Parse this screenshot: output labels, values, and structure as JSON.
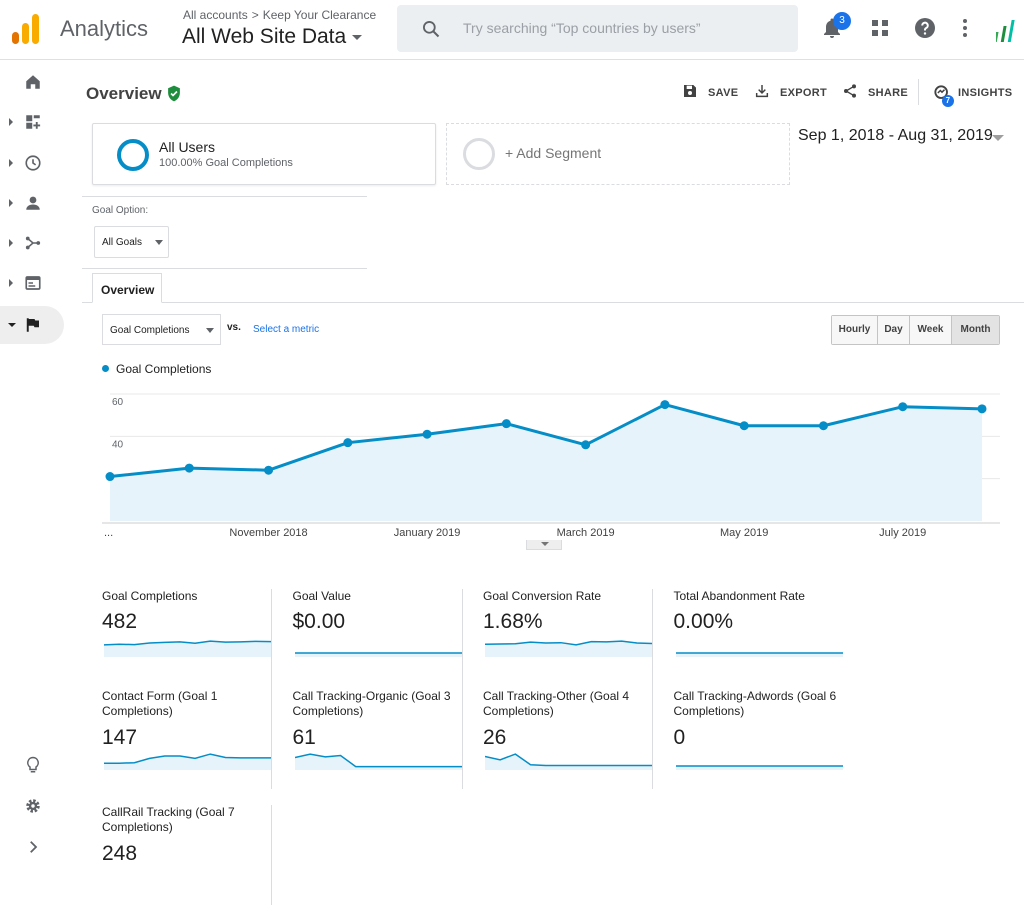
{
  "app": {
    "brand": "Analytics",
    "breadcrumb": [
      "All accounts",
      "Keep Your Clearance"
    ],
    "breadcrumb_sep": ">",
    "view": "All Web Site Data",
    "search_placeholder": "Try searching “Top countries by users”",
    "notification_count": "3"
  },
  "header": {
    "title": "Overview",
    "actions": {
      "save": "SAVE",
      "export": "EXPORT",
      "share": "SHARE",
      "insights": "INSIGHTS"
    },
    "insights_count": "7"
  },
  "segments": {
    "active": {
      "name": "All Users",
      "sub": "100.00% Goal Completions"
    },
    "add": "+ Add Segment"
  },
  "date_range": "Sep 1, 2018 - Aug 31, 2019",
  "goal_option": {
    "label": "Goal Option:",
    "value": "All Goals"
  },
  "tab": "Overview",
  "metric": {
    "primary": "Goal Completions",
    "vs": "vs.",
    "select": "Select a metric"
  },
  "granularity": [
    "Hourly",
    "Day",
    "Week",
    "Month"
  ],
  "granularity_selected": "Month",
  "colors": {
    "series": "#058dc7",
    "fill": "#e6f3fa"
  },
  "chart_data": {
    "type": "area",
    "series": [
      {
        "name": "Goal Completions",
        "values": [
          21,
          25,
          24,
          37,
          41,
          46,
          36,
          55,
          45,
          45,
          54,
          53
        ]
      }
    ],
    "x": [
      "Sep 2018",
      "Oct 2018",
      "Nov 2018",
      "Dec 2018",
      "Jan 2019",
      "Feb 2019",
      "Mar 2019",
      "Apr 2019",
      "May 2019",
      "Jun 2019",
      "Jul 2019",
      "Aug 2019"
    ],
    "ylim": [
      0,
      60
    ],
    "yticks": [
      20,
      40,
      60
    ],
    "xtick_labels": [
      {
        "label": "...",
        "index": 0
      },
      {
        "label": "November 2018",
        "index": 2
      },
      {
        "label": "January 2019",
        "index": 4
      },
      {
        "label": "March 2019",
        "index": 6
      },
      {
        "label": "May 2019",
        "index": 8
      },
      {
        "label": "July 2019",
        "index": 10
      }
    ],
    "grid": true
  },
  "scorecards": [
    {
      "label": "Goal Completions",
      "value": "482",
      "spark": [
        38,
        40,
        39,
        45,
        47,
        49,
        44,
        52,
        48,
        49,
        51,
        50
      ]
    },
    {
      "label": "Goal Value",
      "value": "$0.00",
      "spark": [
        0,
        0,
        0,
        0,
        0,
        0,
        0,
        0,
        0,
        0,
        0,
        0
      ]
    },
    {
      "label": "Goal Conversion Rate",
      "value": "1.68%",
      "spark": [
        40,
        41,
        42,
        48,
        45,
        46,
        38,
        50,
        49,
        52,
        45,
        43
      ]
    },
    {
      "label": "Total Abandonment Rate",
      "value": "0.00%",
      "spark": [
        0,
        0,
        0,
        0,
        0,
        0,
        0,
        0,
        0,
        0,
        0,
        0
      ]
    },
    {
      "label": "Contact Form (Goal 1 Completions)",
      "value": "147",
      "spark": [
        10,
        10,
        11,
        20,
        25,
        25,
        20,
        29,
        22,
        21,
        21,
        21
      ]
    },
    {
      "label": "Call Tracking-Organic (Goal 3 Completions)",
      "value": "61",
      "spark": [
        15,
        20,
        16,
        18,
        2,
        2,
        2,
        2,
        2,
        2,
        2,
        2
      ]
    },
    {
      "label": "Call Tracking-Other (Goal 4 Completions)",
      "value": "26",
      "spark": [
        14,
        10,
        17,
        4,
        3,
        3,
        3,
        3,
        3,
        3,
        3,
        3
      ]
    },
    {
      "label": "Call Tracking-Adwords (Goal 6 Completions)",
      "value": "0",
      "spark": [
        0,
        0,
        0,
        0,
        0,
        0,
        0,
        0,
        0,
        0,
        0,
        0
      ]
    },
    {
      "label": "CallRail Tracking (Goal 7 Completions)",
      "value": "248",
      "spark": []
    }
  ]
}
